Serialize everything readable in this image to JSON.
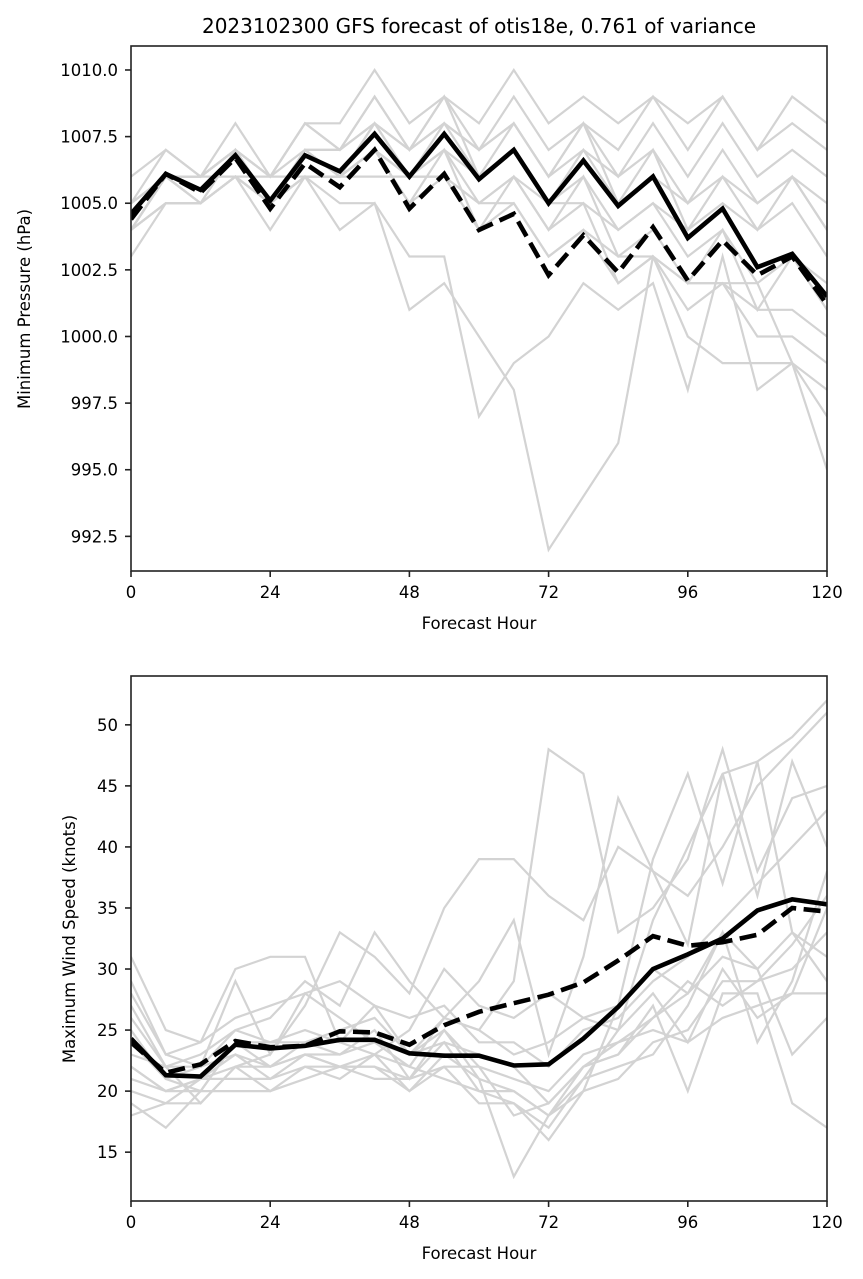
{
  "chart_data": [
    {
      "type": "line",
      "title": "2023102300 GFS forecast of otis18e, 0.761 of variance",
      "xlabel": "Forecast Hour",
      "ylabel": "Minimum Pressure (hPa)",
      "xlim": [
        0,
        120
      ],
      "ylim": [
        991.2,
        1010.9
      ],
      "xticks": [
        0,
        24,
        48,
        72,
        96,
        120
      ],
      "xtick_labels": [
        "0",
        "24",
        "48",
        "72",
        "96",
        "120"
      ],
      "yticks": [
        992.5,
        995.0,
        997.5,
        1000.0,
        1002.5,
        1005.0,
        1007.5,
        1010.0
      ],
      "ytick_labels": [
        "992.5",
        "995.0",
        "997.5",
        "1000.0",
        "1002.5",
        "1005.0",
        "1007.5",
        "1010.0"
      ],
      "grid": false,
      "x": [
        0,
        6,
        12,
        18,
        24,
        30,
        36,
        42,
        48,
        54,
        60,
        66,
        72,
        78,
        84,
        90,
        96,
        102,
        108,
        114,
        120
      ],
      "series": [
        {
          "name": "solid",
          "style": "solid-black-bold",
          "values": [
            1004.6,
            1006.1,
            1005.5,
            1006.8,
            1005.1,
            1006.8,
            1006.2,
            1007.6,
            1006.0,
            1007.6,
            1005.9,
            1007.0,
            1005.0,
            1006.6,
            1004.9,
            1006.0,
            1003.7,
            1004.8,
            1002.6,
            1003.1,
            1001.5
          ]
        },
        {
          "name": "dashed",
          "style": "dashed-black-bold",
          "values": [
            1004.4,
            1006.1,
            1005.4,
            1006.7,
            1004.8,
            1006.5,
            1005.6,
            1007.0,
            1004.8,
            1006.1,
            1004.0,
            1004.6,
            1002.3,
            1003.8,
            1002.4,
            1004.1,
            1002.1,
            1003.6,
            1002.3,
            1003.0,
            1001.2
          ]
        }
      ],
      "members": [
        [
          1006,
          1007,
          1006,
          1008,
          1006,
          1008,
          1008,
          1010,
          1008,
          1009,
          1008,
          1010,
          1008,
          1009,
          1008,
          1009,
          1008,
          1009,
          1007,
          1009,
          1008
        ],
        [
          1005,
          1007,
          1006,
          1007,
          1006,
          1008,
          1007,
          1009,
          1007,
          1009,
          1007,
          1009,
          1007,
          1008,
          1007,
          1009,
          1007,
          1009,
          1007,
          1008,
          1007
        ],
        [
          1005,
          1006,
          1006,
          1007,
          1005,
          1007,
          1007,
          1008,
          1007,
          1008,
          1007,
          1008,
          1006,
          1008,
          1006,
          1008,
          1006,
          1008,
          1006,
          1007,
          1006
        ],
        [
          1004,
          1005,
          1005,
          1006,
          1005,
          1006,
          1006,
          1007,
          1006,
          1007,
          1006,
          1007,
          1005,
          1007,
          1005,
          1006,
          1005,
          1006,
          1005,
          1006,
          1005
        ],
        [
          1004,
          1006,
          1006,
          1006,
          1006,
          1006,
          1006,
          1006,
          1006,
          1006,
          1005,
          1006,
          1005,
          1005,
          1004,
          1005,
          1004,
          1005,
          1004,
          1005,
          1003
        ],
        [
          1003,
          1005,
          1005,
          1006,
          1004,
          1006,
          1004,
          1005,
          1001,
          1002,
          1000,
          998,
          992,
          994,
          996,
          1003,
          1002,
          1002,
          1002,
          999,
          998
        ],
        [
          1004,
          1005,
          1005,
          1006,
          1005,
          1006,
          1005,
          1005,
          1003,
          1003,
          997,
          999,
          1000,
          1002,
          1001,
          1002,
          998,
          1003,
          998,
          999,
          995
        ],
        [
          1004,
          1006,
          1005,
          1007,
          1005,
          1007,
          1006,
          1007,
          1005,
          1006,
          1005,
          1005,
          1003,
          1004,
          1003,
          1004,
          1002,
          1004,
          1001,
          1003,
          1001
        ],
        [
          1005,
          1006,
          1006,
          1007,
          1005,
          1007,
          1006,
          1008,
          1006,
          1008,
          1006,
          1007,
          1005,
          1006,
          1004,
          1005,
          1003,
          1004,
          1002,
          1003,
          1002
        ],
        [
          1004,
          1006,
          1005,
          1006,
          1005,
          1006,
          1006,
          1007,
          1005,
          1007,
          1004,
          1006,
          1004,
          1006,
          1003,
          1003,
          1000,
          999,
          999,
          999,
          997
        ],
        [
          1005,
          1006,
          1006,
          1007,
          1006,
          1007,
          1007,
          1009,
          1007,
          1009,
          1006,
          1008,
          1006,
          1008,
          1005,
          1007,
          1004,
          1006,
          1004,
          1006,
          1004
        ],
        [
          1004,
          1006,
          1005,
          1007,
          1005,
          1007,
          1006,
          1008,
          1006,
          1007,
          1005,
          1006,
          1004,
          1005,
          1002,
          1003,
          1001,
          1002,
          1000,
          1000,
          999
        ],
        [
          1005,
          1006,
          1006,
          1007,
          1006,
          1008,
          1007,
          1008,
          1007,
          1008,
          1007,
          1008,
          1006,
          1007,
          1006,
          1007,
          1005,
          1007,
          1005,
          1006,
          1004
        ],
        [
          1004,
          1005,
          1005,
          1006,
          1005,
          1006,
          1006,
          1007,
          1006,
          1006,
          1004,
          1005,
          1003,
          1004,
          1002,
          1003,
          1002,
          1002,
          1001,
          1001,
          1000
        ]
      ]
    },
    {
      "type": "line",
      "title": "",
      "xlabel": "Forecast Hour",
      "ylabel": "Maximum Wind Speed (knots)",
      "xlim": [
        0,
        120
      ],
      "ylim": [
        11.0,
        54.0
      ],
      "xticks": [
        0,
        24,
        48,
        72,
        96,
        120
      ],
      "xtick_labels": [
        "0",
        "24",
        "48",
        "72",
        "96",
        "120"
      ],
      "yticks": [
        15,
        20,
        25,
        30,
        35,
        40,
        45,
        50
      ],
      "ytick_labels": [
        "15",
        "20",
        "25",
        "30",
        "35",
        "40",
        "45",
        "50"
      ],
      "grid": false,
      "x": [
        0,
        6,
        12,
        18,
        24,
        30,
        36,
        42,
        48,
        54,
        60,
        66,
        72,
        78,
        84,
        90,
        96,
        102,
        108,
        114,
        120
      ],
      "series": [
        {
          "name": "solid",
          "style": "solid-black-bold",
          "values": [
            24.3,
            21.3,
            21.2,
            23.8,
            23.5,
            23.7,
            24.2,
            24.2,
            23.1,
            22.9,
            22.9,
            22.1,
            22.2,
            24.3,
            26.9,
            30.0,
            31.2,
            32.5,
            34.8,
            35.7,
            35.3
          ]
        },
        {
          "name": "dashed",
          "style": "dashed-black-bold",
          "values": [
            24.0,
            21.5,
            22.2,
            24.1,
            23.6,
            23.7,
            24.9,
            24.8,
            23.8,
            25.4,
            26.5,
            27.2,
            27.9,
            28.9,
            30.7,
            32.7,
            31.9,
            32.2,
            32.8,
            35.0,
            34.7
          ]
        }
      ],
      "members": [
        [
          31,
          25,
          24,
          30,
          31,
          31,
          24,
          23,
          25,
          30,
          27,
          26,
          28,
          26,
          25,
          34,
          40,
          46,
          47,
          49,
          52
        ],
        [
          28,
          23,
          22,
          29,
          23,
          27,
          33,
          31,
          28,
          35,
          39,
          39,
          36,
          34,
          40,
          38,
          36,
          40,
          45,
          48,
          51
        ],
        [
          26,
          22,
          23,
          25,
          26,
          29,
          27,
          33,
          29,
          26,
          25,
          29,
          48,
          46,
          33,
          35,
          39,
          48,
          38,
          44,
          45
        ],
        [
          25,
          21,
          20,
          24,
          24,
          25,
          24,
          27,
          23,
          26,
          29,
          34,
          23,
          31,
          44,
          38,
          32,
          46,
          36,
          47,
          40
        ],
        [
          23,
          22,
          19,
          22,
          23,
          28,
          26,
          24,
          22,
          26,
          25,
          23,
          24,
          26,
          27,
          39,
          46,
          37,
          47,
          33,
          29
        ],
        [
          22,
          20,
          20,
          24,
          22,
          24,
          23,
          25,
          21,
          25,
          21,
          20,
          18,
          20,
          27,
          30,
          28,
          33,
          30,
          23,
          26
        ],
        [
          21,
          20,
          21,
          23,
          21,
          23,
          22,
          22,
          21,
          24,
          20,
          19,
          17,
          21,
          25,
          28,
          24,
          30,
          26,
          28,
          35
        ],
        [
          20,
          19,
          19,
          22,
          20,
          22,
          21,
          23,
          20,
          22,
          22,
          18,
          19,
          22,
          23,
          27,
          20,
          28,
          28,
          19,
          17
        ],
        [
          24,
          21,
          22,
          23,
          22,
          23,
          23,
          24,
          23,
          25,
          22,
          21,
          20,
          23,
          24,
          25,
          24,
          26,
          27,
          28,
          28
        ],
        [
          19,
          17,
          20,
          20,
          20,
          21,
          22,
          22,
          20,
          23,
          21,
          13,
          18,
          21,
          22,
          23,
          27,
          33,
          24,
          29,
          38
        ],
        [
          18,
          19,
          21,
          21,
          21,
          22,
          22,
          21,
          21,
          22,
          19,
          19,
          16,
          20,
          21,
          24,
          25,
          29,
          29,
          30,
          33
        ],
        [
          27,
          22,
          22,
          25,
          24,
          24,
          25,
          26,
          23,
          24,
          23,
          22,
          19,
          22,
          23,
          26,
          29,
          27,
          29,
          32,
          36
        ],
        [
          29,
          23,
          24,
          26,
          27,
          28,
          29,
          27,
          26,
          27,
          24,
          24,
          22,
          25,
          26,
          29,
          31,
          34,
          37,
          40,
          43
        ],
        [
          22,
          20,
          21,
          22,
          22,
          23,
          22,
          23,
          22,
          21,
          20,
          20,
          18,
          22,
          24,
          26,
          28,
          31,
          30,
          33,
          31
        ]
      ]
    }
  ]
}
